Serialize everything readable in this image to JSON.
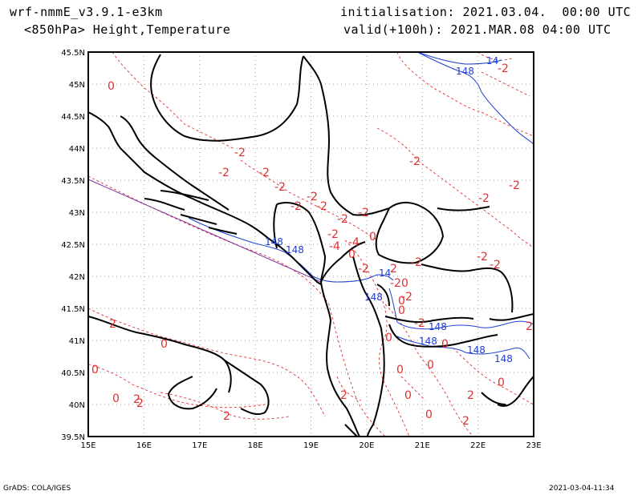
{
  "header": {
    "model": "wrf-nmmE_v3.9.1-e3km",
    "field": "<850hPa> Height,Temperature",
    "init": "initialisation: 2021.03.04.  00:00 UTC",
    "valid": "valid(+100h): 2021.MAR.08 04:00 UTC"
  },
  "axes": {
    "lon_labels": [
      "15E",
      "16E",
      "17E",
      "18E",
      "19E",
      "20E",
      "21E",
      "22E",
      "23E"
    ],
    "lat_labels": [
      "45.5N",
      "45N",
      "44.5N",
      "44N",
      "43.5N",
      "43N",
      "42.5N",
      "42N",
      "41.5N",
      "41N",
      "40.5N",
      "40N",
      "39.5N"
    ]
  },
  "contour_labels": {
    "height": [
      "14",
      "148",
      "148",
      "148",
      "14",
      "148",
      "148",
      "148",
      "148",
      "148"
    ],
    "temperature": [
      "-2",
      "0",
      "-2",
      "-2",
      "-2",
      "-2",
      "-2",
      "-2",
      "-2",
      "-2",
      "-2",
      "-4",
      "-4",
      "0",
      "-2",
      "-2",
      "-2",
      "-2",
      "-2",
      "-2",
      "-20",
      "0",
      "0",
      "-2",
      "0",
      "0",
      "0",
      "0",
      "0",
      "0",
      "0",
      "0",
      "2",
      "2",
      "2",
      "2",
      "2",
      "2",
      "2",
      "-2",
      "-2",
      "0",
      "0",
      "0",
      "2",
      "2",
      "-2"
    ]
  },
  "colors": {
    "height": "#2040d0",
    "temperature": "#e03030",
    "coast": "#000000",
    "grid": "#a0a0a0",
    "diag": "#8030a0"
  },
  "footer": {
    "left": "GrADS: COLA/IGES",
    "right": "2021-03-04-11:34"
  }
}
